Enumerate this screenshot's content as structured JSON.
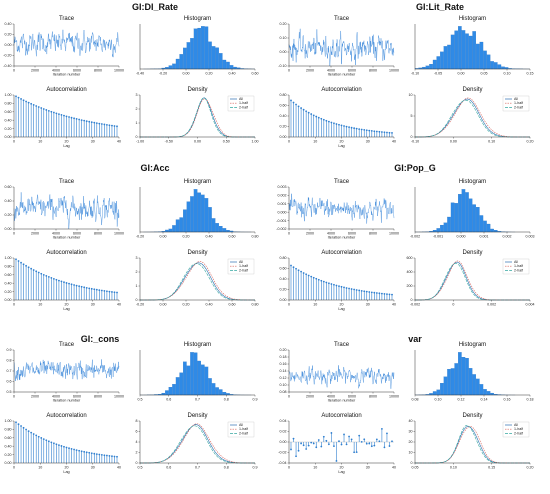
{
  "colors": {
    "trace": "#1f77d4",
    "hist": "#2f8ae6",
    "acf": "#2f7fcf",
    "all": "#2b6fb0",
    "half1": "#d6615a",
    "half2": "#35a7a0",
    "axis": "#333333"
  },
  "chart_data": [
    {
      "type": "diagnostics",
      "parameter": "GI:DI_Rate",
      "trace": {
        "title": "Trace",
        "xlabel": "Iteration number",
        "xticks": [
          "0",
          "2000",
          "4000",
          "6000",
          "8000",
          "10000"
        ],
        "yticks": [
          "-0.40",
          "-0.20",
          "0.00",
          "0.20",
          "0.40"
        ],
        "ylim": [
          -0.5,
          0.6
        ],
        "mean": 0.1,
        "sd": 0.14
      },
      "histogram": {
        "title": "Histogram",
        "xticks": [
          "-0.40",
          "-0.20",
          "0.00",
          "0.20",
          "0.40",
          "0.60"
        ],
        "xlim": [
          -0.5,
          0.65
        ],
        "center": 0.12,
        "sd": 0.14
      },
      "autocorrelation": {
        "title": "Autocorrelation",
        "xlabel": "Lag",
        "xticks": [
          "0",
          "10",
          "20",
          "30",
          "40"
        ],
        "yticks": [
          "0.00",
          "0.20",
          "0.40",
          "0.60",
          "0.80",
          "1.00"
        ],
        "ylim": [
          0,
          1
        ],
        "lags": 40,
        "start": 0.95,
        "decay": 0.035
      },
      "density": {
        "title": "Density",
        "xticks": [
          "-1.00",
          "-0.50",
          "0.00",
          "0.50",
          "1.00"
        ],
        "xlim": [
          -1.0,
          1.0
        ],
        "yticks": [
          "0",
          "1",
          "2",
          "3"
        ],
        "legend": [
          "All",
          "1-half",
          "2-half"
        ],
        "center": 0.12,
        "sd": 0.14
      }
    },
    {
      "type": "diagnostics",
      "parameter": "GI:Lit_Rate",
      "trace": {
        "title": "Trace",
        "xlabel": "Iteration number",
        "xticks": [
          "0",
          "2000",
          "4000",
          "6000",
          "8000",
          "10000"
        ],
        "yticks": [
          "-0.10",
          "0.00",
          "0.10",
          "0.20"
        ],
        "ylim": [
          -0.12,
          0.16
        ],
        "mean": 0.0,
        "sd": 0.04
      },
      "histogram": {
        "title": "Histogram",
        "xticks": [
          "-0.10",
          "-0.05",
          "0.00",
          "0.05",
          "0.10",
          "0.15"
        ],
        "xlim": [
          -0.12,
          0.16
        ],
        "center": 0.0,
        "sd": 0.04
      },
      "autocorrelation": {
        "title": "Autocorrelation",
        "xlabel": "Lag",
        "xticks": [
          "0",
          "10",
          "20",
          "30",
          "40"
        ],
        "yticks": [
          "0.00",
          "0.20",
          "0.40",
          "0.60",
          "0.80"
        ],
        "ylim": [
          0,
          1
        ],
        "lags": 40,
        "start": 0.85,
        "decay": 0.06
      },
      "density": {
        "title": "Density",
        "xticks": [
          "-0.10",
          "0.00",
          "0.10",
          "0.20"
        ],
        "xlim": [
          -0.16,
          0.2
        ],
        "yticks": [
          "0",
          "5",
          "10"
        ],
        "legend": [
          "All",
          "1-half",
          "2-half"
        ],
        "center": 0.0,
        "sd": 0.04
      }
    },
    {
      "type": "diagnostics",
      "parameter": "GI:Acc",
      "trace": {
        "title": "Trace",
        "xlabel": "Iteration number",
        "xticks": [
          "0",
          "2000",
          "4000",
          "6000",
          "8000",
          "10000"
        ],
        "yticks": [
          "0.00",
          "0.20",
          "0.40",
          "0.60"
        ],
        "ylim": [
          -0.15,
          0.75
        ],
        "mean": 0.3,
        "sd": 0.12
      },
      "histogram": {
        "title": "Histogram",
        "xticks": [
          "-0.20",
          "0.00",
          "0.20",
          "0.40",
          "0.60",
          "0.80"
        ],
        "xlim": [
          -0.25,
          0.85
        ],
        "center": 0.3,
        "sd": 0.12
      },
      "autocorrelation": {
        "title": "Autocorrelation",
        "xlabel": "Lag",
        "xticks": [
          "0",
          "10",
          "20",
          "30",
          "40"
        ],
        "yticks": [
          "0.00",
          "0.20",
          "0.40",
          "0.60",
          "0.80",
          "1.00"
        ],
        "ylim": [
          0,
          1
        ],
        "lags": 40,
        "start": 0.95,
        "decay": 0.045
      },
      "density": {
        "title": "Density",
        "xticks": [
          "-0.20",
          "0.00",
          "0.20",
          "0.40",
          "0.60",
          "0.80"
        ],
        "xlim": [
          -0.25,
          0.85
        ],
        "yticks": [
          "0",
          "1",
          "2",
          "3"
        ],
        "legend": [
          "All",
          "1-half",
          "2-half"
        ],
        "center": 0.3,
        "sd": 0.12
      }
    },
    {
      "type": "diagnostics",
      "parameter": "GI:Pop_G",
      "trace": {
        "title": "Trace",
        "xlabel": "Iteration number",
        "xticks": [
          "0",
          "2000",
          "4000",
          "6000",
          "8000",
          "10000"
        ],
        "yticks": [
          "-0.002",
          "-0.001",
          "0.000",
          "0.001",
          "0.002",
          "0.003"
        ],
        "ylim": [
          -0.0025,
          0.0032
        ],
        "mean": 0.0002,
        "sd": 0.0007
      },
      "histogram": {
        "title": "Histogram",
        "xticks": [
          "-0.002",
          "-0.001",
          "0.000",
          "0.001",
          "0.002",
          "0.003"
        ],
        "xlim": [
          -0.0025,
          0.0032
        ],
        "center": 0.0,
        "sd": 0.0006
      },
      "autocorrelation": {
        "title": "Autocorrelation",
        "xlabel": "Lag",
        "xticks": [
          "0",
          "10",
          "20",
          "30",
          "40"
        ],
        "yticks": [
          "0.00",
          "0.20",
          "0.40",
          "0.60",
          "0.80"
        ],
        "ylim": [
          0,
          1
        ],
        "lags": 40,
        "start": 0.8,
        "decay": 0.05
      },
      "density": {
        "title": "Density",
        "xticks": [
          "-0.002",
          "0",
          "0.002",
          "0.004"
        ],
        "xlim": [
          -0.0025,
          0.0045
        ],
        "yticks": [
          "0",
          "200",
          "400",
          "600"
        ],
        "legend": [
          "All",
          "1-half",
          "2-half"
        ],
        "center": 0.0,
        "sd": 0.0006
      }
    },
    {
      "type": "diagnostics",
      "parameter": "GI:_cons",
      "trace": {
        "title": "Trace",
        "xlabel": "Iteration number",
        "xticks": [
          "0",
          "2000",
          "4000",
          "6000",
          "8000",
          "10000"
        ],
        "yticks": [
          "0.5",
          "0.6",
          "0.7",
          "0.8",
          "0.9"
        ],
        "ylim": [
          0.45,
          0.92
        ],
        "mean": 0.69,
        "sd": 0.05
      },
      "histogram": {
        "title": "Histogram",
        "xticks": [
          "0.5",
          "0.6",
          "0.7",
          "0.8",
          "0.9"
        ],
        "xlim": [
          0.48,
          0.92
        ],
        "center": 0.69,
        "sd": 0.05
      },
      "autocorrelation": {
        "title": "Autocorrelation",
        "xlabel": "Lag",
        "xticks": [
          "0",
          "10",
          "20",
          "30",
          "40"
        ],
        "yticks": [
          "0.00",
          "0.20",
          "0.40",
          "0.60",
          "0.80",
          "1.00"
        ],
        "ylim": [
          0,
          1
        ],
        "lags": 40,
        "start": 0.95,
        "decay": 0.05
      },
      "density": {
        "title": "Density",
        "xticks": [
          "0.5",
          "0.6",
          "0.7",
          "0.8",
          "0.9"
        ],
        "xlim": [
          0.48,
          0.92
        ],
        "yticks": [
          "0",
          "2",
          "4",
          "6",
          "8"
        ],
        "legend": [
          "All",
          "1-half",
          "2-half"
        ],
        "center": 0.69,
        "sd": 0.05
      }
    },
    {
      "type": "diagnostics",
      "parameter": "var",
      "trace": {
        "title": "Trace",
        "xlabel": "Iteration number",
        "xticks": [
          "0",
          "2000",
          "4000",
          "6000",
          "8000",
          "10000"
        ],
        "yticks": [
          "0.08",
          "0.10",
          "0.12",
          "0.14",
          "0.16",
          "0.18",
          "0.20"
        ],
        "ylim": [
          0.07,
          0.2
        ],
        "mean": 0.12,
        "sd": 0.012
      },
      "histogram": {
        "title": "Histogram",
        "xticks": [
          "0.08",
          "0.10",
          "0.12",
          "0.14",
          "0.16",
          "0.18"
        ],
        "xlim": [
          0.075,
          0.185
        ],
        "center": 0.12,
        "sd": 0.012
      },
      "autocorrelation": {
        "title": "Autocorrelation",
        "xlabel": "Lag",
        "xticks": [
          "0",
          "10",
          "20",
          "30",
          "40"
        ],
        "yticks": [
          "-0.04",
          "-0.02",
          "0.00",
          "0.02",
          "0.04"
        ],
        "ylim": [
          -0.05,
          0.05
        ],
        "lags": 40,
        "start": 0.0,
        "decay": 0.0,
        "noise": 0.02
      },
      "density": {
        "title": "Density",
        "xticks": [
          "0.05",
          "0.10",
          "0.15",
          "0.20"
        ],
        "xlim": [
          0.05,
          0.2
        ],
        "yticks": [
          "0",
          "10",
          "20",
          "30",
          "40"
        ],
        "legend": [
          "All",
          "1-half",
          "2-half"
        ],
        "center": 0.12,
        "sd": 0.012
      }
    }
  ]
}
